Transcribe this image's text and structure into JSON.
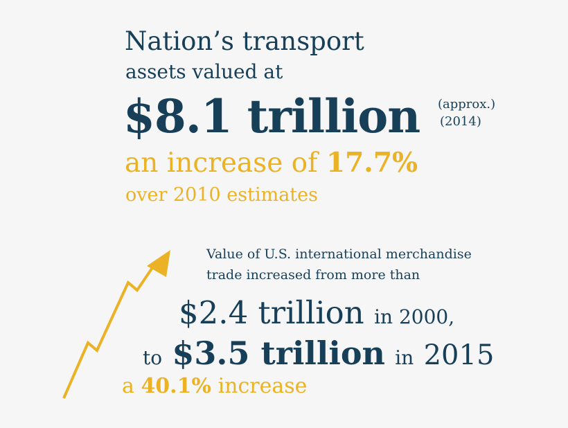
{
  "headline": {
    "line1": "Nation’s transport",
    "line2": "assets valued at",
    "value": "$8.1 trillion",
    "approx": "(approx.)",
    "year": "(2014)",
    "increase_prefix": "an increase of ",
    "increase_value": "17.7%",
    "increase_suffix": "over 2010 estimates"
  },
  "trade": {
    "intro_line1": "Value of U.S. international merchandise",
    "intro_line2": "trade increased from more than",
    "from_value": "$2.4 trillion",
    "from_year": "in 2000,",
    "to_prefix": "to",
    "to_value": "$3.5 trillion",
    "to_in": "in",
    "to_year": "2015",
    "pct_prefix": "a",
    "pct_value": "40.1%",
    "pct_suffix": "increase"
  },
  "colors": {
    "navy": "#173f58",
    "gold": "#ebb226",
    "background": "#f6f6f6"
  },
  "icons": {
    "arrow": "rising-trend-arrow-icon"
  }
}
